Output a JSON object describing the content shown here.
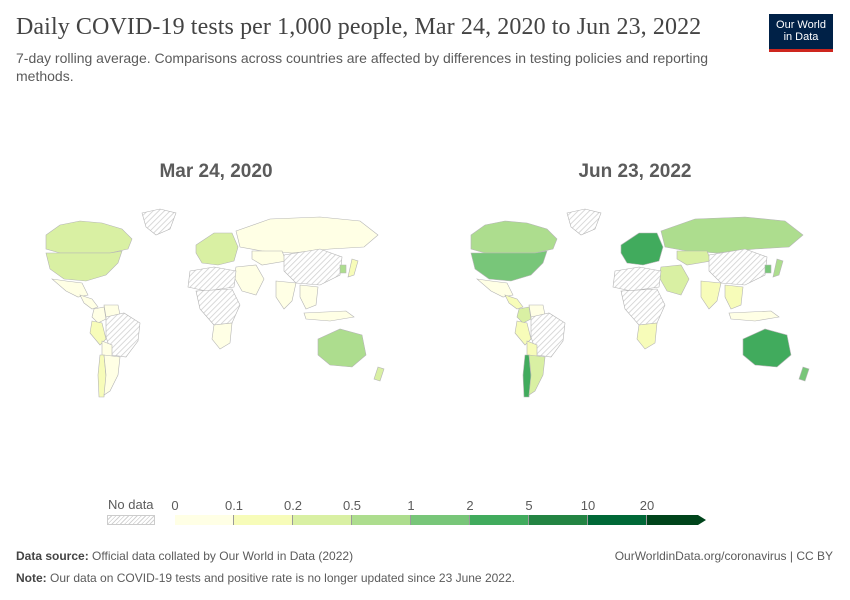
{
  "title": "Daily COVID-19 tests per 1,000 people, Mar 24, 2020 to Jun 23, 2022",
  "subtitle": "7-day rolling average. Comparisons across countries are affected by differences in testing policies and reporting methods.",
  "logo": {
    "line1": "Our World",
    "line2": "in Data"
  },
  "maps": {
    "left_title": "Mar 24, 2020",
    "right_title": "Jun 23, 2022",
    "left_regions": [
      {
        "name": "Canada",
        "bin": 2
      },
      {
        "name": "United States",
        "bin": 2
      },
      {
        "name": "Greenland",
        "bin": -1
      },
      {
        "name": "Mexico",
        "bin": 0
      },
      {
        "name": "Central America",
        "bin": 0
      },
      {
        "name": "Colombia",
        "bin": 0
      },
      {
        "name": "Venezuela",
        "bin": 0
      },
      {
        "name": "Brazil",
        "bin": -1
      },
      {
        "name": "Peru",
        "bin": 1
      },
      {
        "name": "Bolivia",
        "bin": 0
      },
      {
        "name": "Chile",
        "bin": 1
      },
      {
        "name": "Argentina",
        "bin": 0
      },
      {
        "name": "Europe",
        "bin": 2
      },
      {
        "name": "Russia",
        "bin": 0
      },
      {
        "name": "Kazakhstan",
        "bin": 0
      },
      {
        "name": "China",
        "bin": -1
      },
      {
        "name": "India",
        "bin": 0
      },
      {
        "name": "Middle East",
        "bin": 0
      },
      {
        "name": "North Africa",
        "bin": -1
      },
      {
        "name": "Central Africa",
        "bin": -1
      },
      {
        "name": "South Africa",
        "bin": 0
      },
      {
        "name": "Southeast Asia",
        "bin": 0
      },
      {
        "name": "Japan",
        "bin": 1
      },
      {
        "name": "South Korea",
        "bin": 3
      },
      {
        "name": "Indonesia",
        "bin": 0
      },
      {
        "name": "Australia",
        "bin": 3
      },
      {
        "name": "New Zealand",
        "bin": 2
      }
    ],
    "right_regions": [
      {
        "name": "Canada",
        "bin": 3
      },
      {
        "name": "United States",
        "bin": 4
      },
      {
        "name": "Greenland",
        "bin": -1
      },
      {
        "name": "Mexico",
        "bin": 0
      },
      {
        "name": "Central America",
        "bin": 1
      },
      {
        "name": "Colombia",
        "bin": 2
      },
      {
        "name": "Venezuela",
        "bin": 0
      },
      {
        "name": "Brazil",
        "bin": -1
      },
      {
        "name": "Peru",
        "bin": 1
      },
      {
        "name": "Bolivia",
        "bin": 1
      },
      {
        "name": "Chile",
        "bin": 5
      },
      {
        "name": "Argentina",
        "bin": 2
      },
      {
        "name": "Europe",
        "bin": 5
      },
      {
        "name": "Russia",
        "bin": 3
      },
      {
        "name": "Kazakhstan",
        "bin": 2
      },
      {
        "name": "China",
        "bin": -1
      },
      {
        "name": "India",
        "bin": 1
      },
      {
        "name": "Middle East",
        "bin": 2
      },
      {
        "name": "North Africa",
        "bin": -1
      },
      {
        "name": "Central Africa",
        "bin": -1
      },
      {
        "name": "South Africa",
        "bin": 1
      },
      {
        "name": "Southeast Asia",
        "bin": 1
      },
      {
        "name": "Japan",
        "bin": 3
      },
      {
        "name": "South Korea",
        "bin": 4
      },
      {
        "name": "Indonesia",
        "bin": 0
      },
      {
        "name": "Australia",
        "bin": 5
      },
      {
        "name": "New Zealand",
        "bin": 4
      }
    ]
  },
  "legend": {
    "no_data_label": "No data",
    "ticks": [
      "0",
      "0.1",
      "0.2",
      "0.5",
      "1",
      "2",
      "5",
      "10",
      "20"
    ],
    "colors": [
      "#ffffe5",
      "#f7fcb9",
      "#d9f0a3",
      "#addd8e",
      "#78c679",
      "#41ab5d",
      "#238443",
      "#006837",
      "#00441b"
    ],
    "no_data_color": "#e0e0e0"
  },
  "footer": {
    "source_label": "Data source:",
    "source_text": "Official data collated by Our World in Data (2022)",
    "url_text": "OurWorldinData.org/coronavirus | CC BY",
    "note_label": "Note:",
    "note_text": "Our data on COVID-19 tests and positive rate is no longer updated since 23 June 2022."
  }
}
